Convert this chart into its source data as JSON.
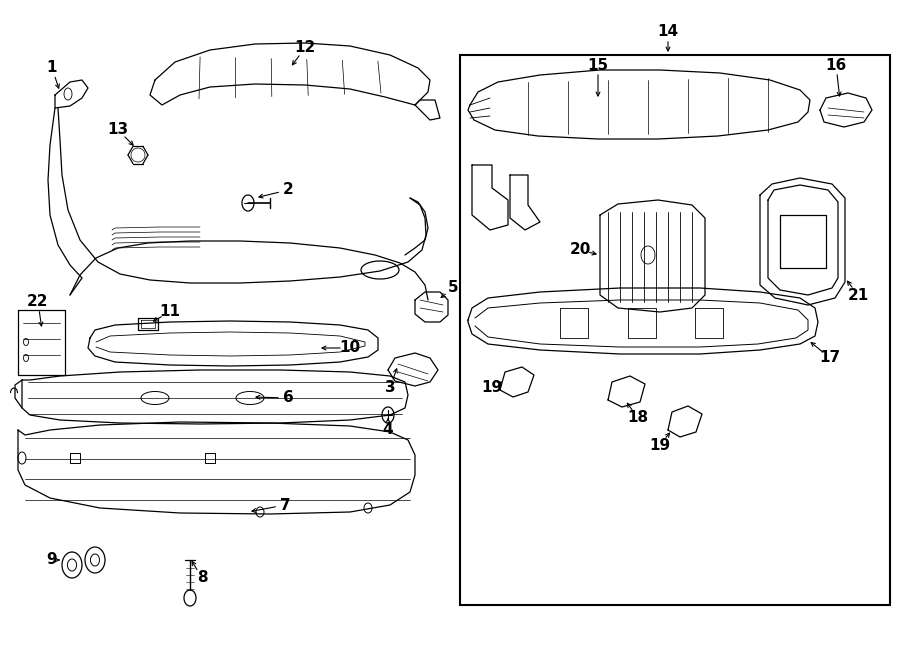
{
  "bg_color": "#ffffff",
  "line_color": "#000000",
  "figure_width": 9.0,
  "figure_height": 6.61,
  "dpi": 100
}
